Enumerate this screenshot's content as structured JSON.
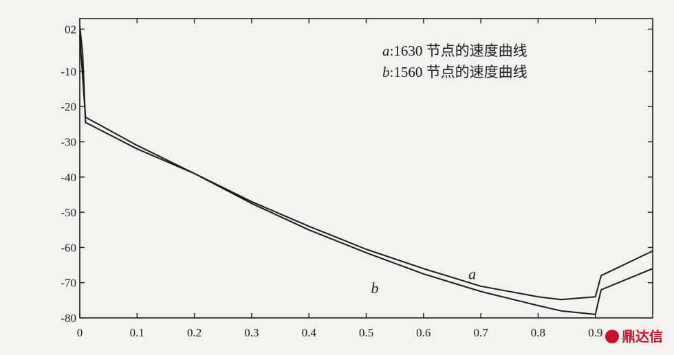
{
  "chart_data": {
    "type": "line",
    "title": "",
    "xlabel": "",
    "ylabel": "",
    "xlim": [
      0,
      1.0
    ],
    "ylim": [
      -80,
      5
    ],
    "x_ticks": [
      0,
      0.1,
      0.2,
      0.3,
      0.4,
      0.5,
      0.6,
      0.7,
      0.8,
      0.9
    ],
    "x_tick_labels": [
      "0",
      "0.1",
      "0.2",
      "0.3",
      "0.4",
      "0.5",
      "0.6",
      "0.7",
      "0.8",
      "0.9"
    ],
    "y_ticks": [
      2,
      -10,
      -20,
      -30,
      -40,
      -50,
      -60,
      -70,
      -80
    ],
    "y_tick_labels": [
      "02",
      "-10",
      "-20",
      "-30",
      "-40",
      "-50",
      "-60",
      "-70",
      "-80"
    ],
    "grid": false,
    "legend_position": "top-right",
    "legend": [
      {
        "key": "a",
        "text": ":1630 节点的速度曲线"
      },
      {
        "key": "b",
        "text": ":1560 节点的速度曲线"
      }
    ],
    "series": [
      {
        "name": "a",
        "x": [
          0,
          0.01,
          0.1,
          0.2,
          0.3,
          0.4,
          0.5,
          0.6,
          0.7,
          0.8,
          0.84,
          0.9,
          0.91,
          1.0
        ],
        "y": [
          0,
          -23,
          -31,
          -39,
          -47,
          -54,
          -60.5,
          -66,
          -71,
          -74,
          -74.8,
          -74,
          -68,
          -61
        ]
      },
      {
        "name": "b",
        "x": [
          0,
          0.005,
          0.01,
          0.1,
          0.2,
          0.3,
          0.4,
          0.5,
          0.6,
          0.7,
          0.8,
          0.84,
          0.9,
          0.91,
          1.0
        ],
        "y": [
          3,
          -5,
          -24.5,
          -32,
          -39,
          -47.5,
          -55,
          -61.5,
          -67.5,
          -72.5,
          -76.5,
          -78,
          -79,
          -72,
          -66
        ]
      }
    ],
    "curve_labels": [
      {
        "text": "a",
        "x": 0.685,
        "y": -69
      },
      {
        "text": "b",
        "x": 0.515,
        "y": -73
      }
    ]
  },
  "watermark": {
    "text": "鼎达信",
    "color": "#c8102e"
  }
}
